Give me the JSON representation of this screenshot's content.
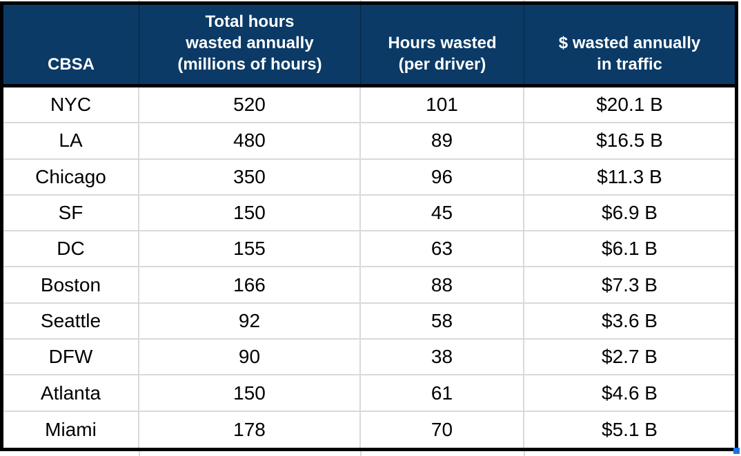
{
  "theme": {
    "header_bg": "#0b3a66",
    "header_text": "#ffffff",
    "grid_line": "#d9d9d9",
    "outer_border": "#000000",
    "fill_handle_blue": "#1a73e8",
    "cell_text": "#000000"
  },
  "table": {
    "columns": [
      {
        "id": "cbsa",
        "label_lines": [
          "CBSA"
        ]
      },
      {
        "id": "total-hours",
        "label_lines": [
          "Total hours",
          "wasted annually",
          "(millions of hours)"
        ]
      },
      {
        "id": "hours-per-driver",
        "label_lines": [
          "Hours wasted",
          "(per driver)"
        ]
      },
      {
        "id": "dollars-wasted",
        "label_lines": [
          "$ wasted annually",
          "in traffic"
        ]
      }
    ],
    "rows": [
      [
        "NYC",
        "520",
        "101",
        "$20.1 B"
      ],
      [
        "LA",
        "480",
        "89",
        "$16.5 B"
      ],
      [
        "Chicago",
        "350",
        "96",
        "$11.3 B"
      ],
      [
        "SF",
        "150",
        "45",
        "$6.9 B"
      ],
      [
        "DC",
        "155",
        "63",
        "$6.1 B"
      ],
      [
        "Boston",
        "166",
        "88",
        "$7.3 B"
      ],
      [
        "Seattle",
        "92",
        "58",
        "$3.6 B"
      ],
      [
        "DFW",
        "90",
        "38",
        "$2.7 B"
      ],
      [
        "Atlanta",
        "150",
        "61",
        "$4.6 B"
      ],
      [
        "Miami",
        "178",
        "70",
        "$5.1 B"
      ]
    ]
  },
  "chart_data": {
    "type": "table",
    "title": "",
    "columns": [
      "CBSA",
      "Total hours wasted annually (millions of hours)",
      "Hours wasted (per driver)",
      "$ wasted annually in traffic"
    ],
    "rows": [
      {
        "cbsa": "NYC",
        "total_hours_wasted_millions": 520,
        "hours_wasted_per_driver": 101,
        "dollars_wasted_annually_billions": 20.1,
        "dollars_label": "$20.1 B"
      },
      {
        "cbsa": "LA",
        "total_hours_wasted_millions": 480,
        "hours_wasted_per_driver": 89,
        "dollars_wasted_annually_billions": 16.5,
        "dollars_label": "$16.5 B"
      },
      {
        "cbsa": "Chicago",
        "total_hours_wasted_millions": 350,
        "hours_wasted_per_driver": 96,
        "dollars_wasted_annually_billions": 11.3,
        "dollars_label": "$11.3 B"
      },
      {
        "cbsa": "SF",
        "total_hours_wasted_millions": 150,
        "hours_wasted_per_driver": 45,
        "dollars_wasted_annually_billions": 6.9,
        "dollars_label": "$6.9 B"
      },
      {
        "cbsa": "DC",
        "total_hours_wasted_millions": 155,
        "hours_wasted_per_driver": 63,
        "dollars_wasted_annually_billions": 6.1,
        "dollars_label": "$6.1 B"
      },
      {
        "cbsa": "Boston",
        "total_hours_wasted_millions": 166,
        "hours_wasted_per_driver": 88,
        "dollars_wasted_annually_billions": 7.3,
        "dollars_label": "$7.3 B"
      },
      {
        "cbsa": "Seattle",
        "total_hours_wasted_millions": 92,
        "hours_wasted_per_driver": 58,
        "dollars_wasted_annually_billions": 3.6,
        "dollars_label": "$3.6 B"
      },
      {
        "cbsa": "DFW",
        "total_hours_wasted_millions": 90,
        "hours_wasted_per_driver": 38,
        "dollars_wasted_annually_billions": 2.7,
        "dollars_label": "$2.7 B"
      },
      {
        "cbsa": "Atlanta",
        "total_hours_wasted_millions": 150,
        "hours_wasted_per_driver": 61,
        "dollars_wasted_annually_billions": 4.6,
        "dollars_label": "$4.6 B"
      },
      {
        "cbsa": "Miami",
        "total_hours_wasted_millions": 178,
        "hours_wasted_per_driver": 70,
        "dollars_wasted_annually_billions": 5.1,
        "dollars_label": "$5.1 B"
      }
    ]
  }
}
